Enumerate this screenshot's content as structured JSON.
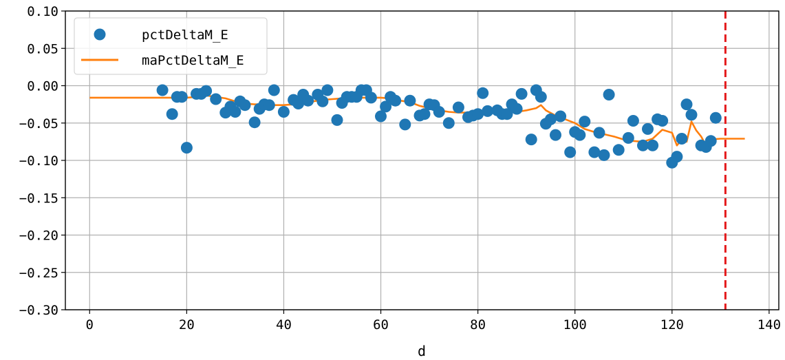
{
  "chart_data": {
    "type": "scatter",
    "title": "",
    "xlabel": "d",
    "ylabel": "",
    "xlim": [
      -5,
      142
    ],
    "ylim": [
      -0.3,
      0.1
    ],
    "xticks": [
      0,
      20,
      40,
      60,
      80,
      100,
      120,
      140
    ],
    "xtick_labels": [
      "0",
      "20",
      "40",
      "60",
      "80",
      "100",
      "120",
      "140"
    ],
    "yticks": [
      0.1,
      0.05,
      0.0,
      -0.05,
      -0.1,
      -0.15,
      -0.2,
      -0.25,
      -0.3
    ],
    "ytick_labels": [
      "0.10",
      "0.05",
      "0.00",
      "−0.05",
      "−0.10",
      "−0.15",
      "−0.20",
      "−0.25",
      "−0.30"
    ],
    "grid": true,
    "legend_position": "top-left",
    "vline": {
      "x": 131,
      "color": "#e41a1c",
      "style": "dashed"
    },
    "series": [
      {
        "name": "pctDeltaM_E",
        "kind": "scatter",
        "color": "#1f77b4",
        "x": [
          15,
          17,
          18,
          19,
          20,
          22,
          23,
          24,
          26,
          28,
          29,
          30,
          31,
          32,
          34,
          35,
          36,
          37,
          38,
          40,
          42,
          43,
          44,
          45,
          47,
          48,
          49,
          51,
          52,
          53,
          54,
          55,
          56,
          57,
          58,
          60,
          61,
          62,
          63,
          65,
          66,
          68,
          69,
          70,
          71,
          72,
          74,
          76,
          78,
          79,
          80,
          81,
          82,
          84,
          85,
          86,
          87,
          88,
          89,
          91,
          92,
          93,
          94,
          95,
          96,
          97,
          99,
          100,
          101,
          102,
          104,
          105,
          106,
          107,
          109,
          111,
          112,
          114,
          115,
          116,
          117,
          118,
          120,
          121,
          122,
          123,
          124,
          126,
          127,
          128,
          129
        ],
        "y": [
          -0.006,
          -0.038,
          -0.015,
          -0.015,
          -0.083,
          -0.011,
          -0.011,
          -0.007,
          -0.018,
          -0.036,
          -0.028,
          -0.035,
          -0.021,
          -0.026,
          -0.049,
          -0.031,
          -0.025,
          -0.026,
          -0.006,
          -0.035,
          -0.019,
          -0.024,
          -0.012,
          -0.02,
          -0.012,
          -0.021,
          -0.006,
          -0.046,
          -0.023,
          -0.015,
          -0.015,
          -0.015,
          -0.006,
          -0.006,
          -0.016,
          -0.041,
          -0.028,
          -0.015,
          -0.02,
          -0.052,
          -0.02,
          -0.04,
          -0.038,
          -0.025,
          -0.026,
          -0.035,
          -0.05,
          -0.029,
          -0.042,
          -0.04,
          -0.038,
          -0.01,
          -0.034,
          -0.033,
          -0.038,
          -0.038,
          -0.025,
          -0.031,
          -0.011,
          -0.072,
          -0.006,
          -0.015,
          -0.051,
          -0.045,
          -0.066,
          -0.041,
          -0.089,
          -0.062,
          -0.066,
          -0.048,
          -0.089,
          -0.063,
          -0.093,
          -0.012,
          -0.086,
          -0.07,
          -0.047,
          -0.08,
          -0.058,
          -0.08,
          -0.045,
          -0.047,
          -0.103,
          -0.095,
          -0.071,
          -0.025,
          -0.039,
          -0.08,
          -0.082,
          -0.074,
          -0.043
        ]
      },
      {
        "name": "maPctDeltaM_E",
        "kind": "line",
        "color": "#ff7f0e",
        "x": [
          0,
          20,
          22,
          24,
          26,
          28,
          30,
          32,
          34,
          36,
          38,
          40,
          42,
          44,
          46,
          48,
          50,
          52,
          54,
          56,
          58,
          60,
          62,
          64,
          66,
          68,
          70,
          72,
          74,
          76,
          78,
          80,
          82,
          84,
          86,
          88,
          90,
          92,
          93,
          94,
          96,
          98,
          100,
          102,
          104,
          106,
          108,
          110,
          112,
          114,
          116,
          118,
          120,
          121,
          122,
          123,
          124,
          125,
          126,
          127,
          128,
          130,
          132,
          135
        ],
        "y": [
          -0.016,
          -0.016,
          -0.015,
          -0.013,
          -0.015,
          -0.017,
          -0.021,
          -0.024,
          -0.025,
          -0.025,
          -0.026,
          -0.026,
          -0.025,
          -0.023,
          -0.021,
          -0.019,
          -0.018,
          -0.017,
          -0.017,
          -0.016,
          -0.016,
          -0.016,
          -0.017,
          -0.02,
          -0.022,
          -0.027,
          -0.03,
          -0.033,
          -0.035,
          -0.036,
          -0.036,
          -0.036,
          -0.036,
          -0.036,
          -0.036,
          -0.035,
          -0.033,
          -0.03,
          -0.026,
          -0.033,
          -0.04,
          -0.045,
          -0.05,
          -0.058,
          -0.062,
          -0.065,
          -0.068,
          -0.072,
          -0.074,
          -0.075,
          -0.071,
          -0.059,
          -0.063,
          -0.08,
          -0.072,
          -0.075,
          -0.048,
          -0.06,
          -0.068,
          -0.08,
          -0.072,
          -0.071,
          -0.071,
          -0.071
        ]
      }
    ]
  }
}
